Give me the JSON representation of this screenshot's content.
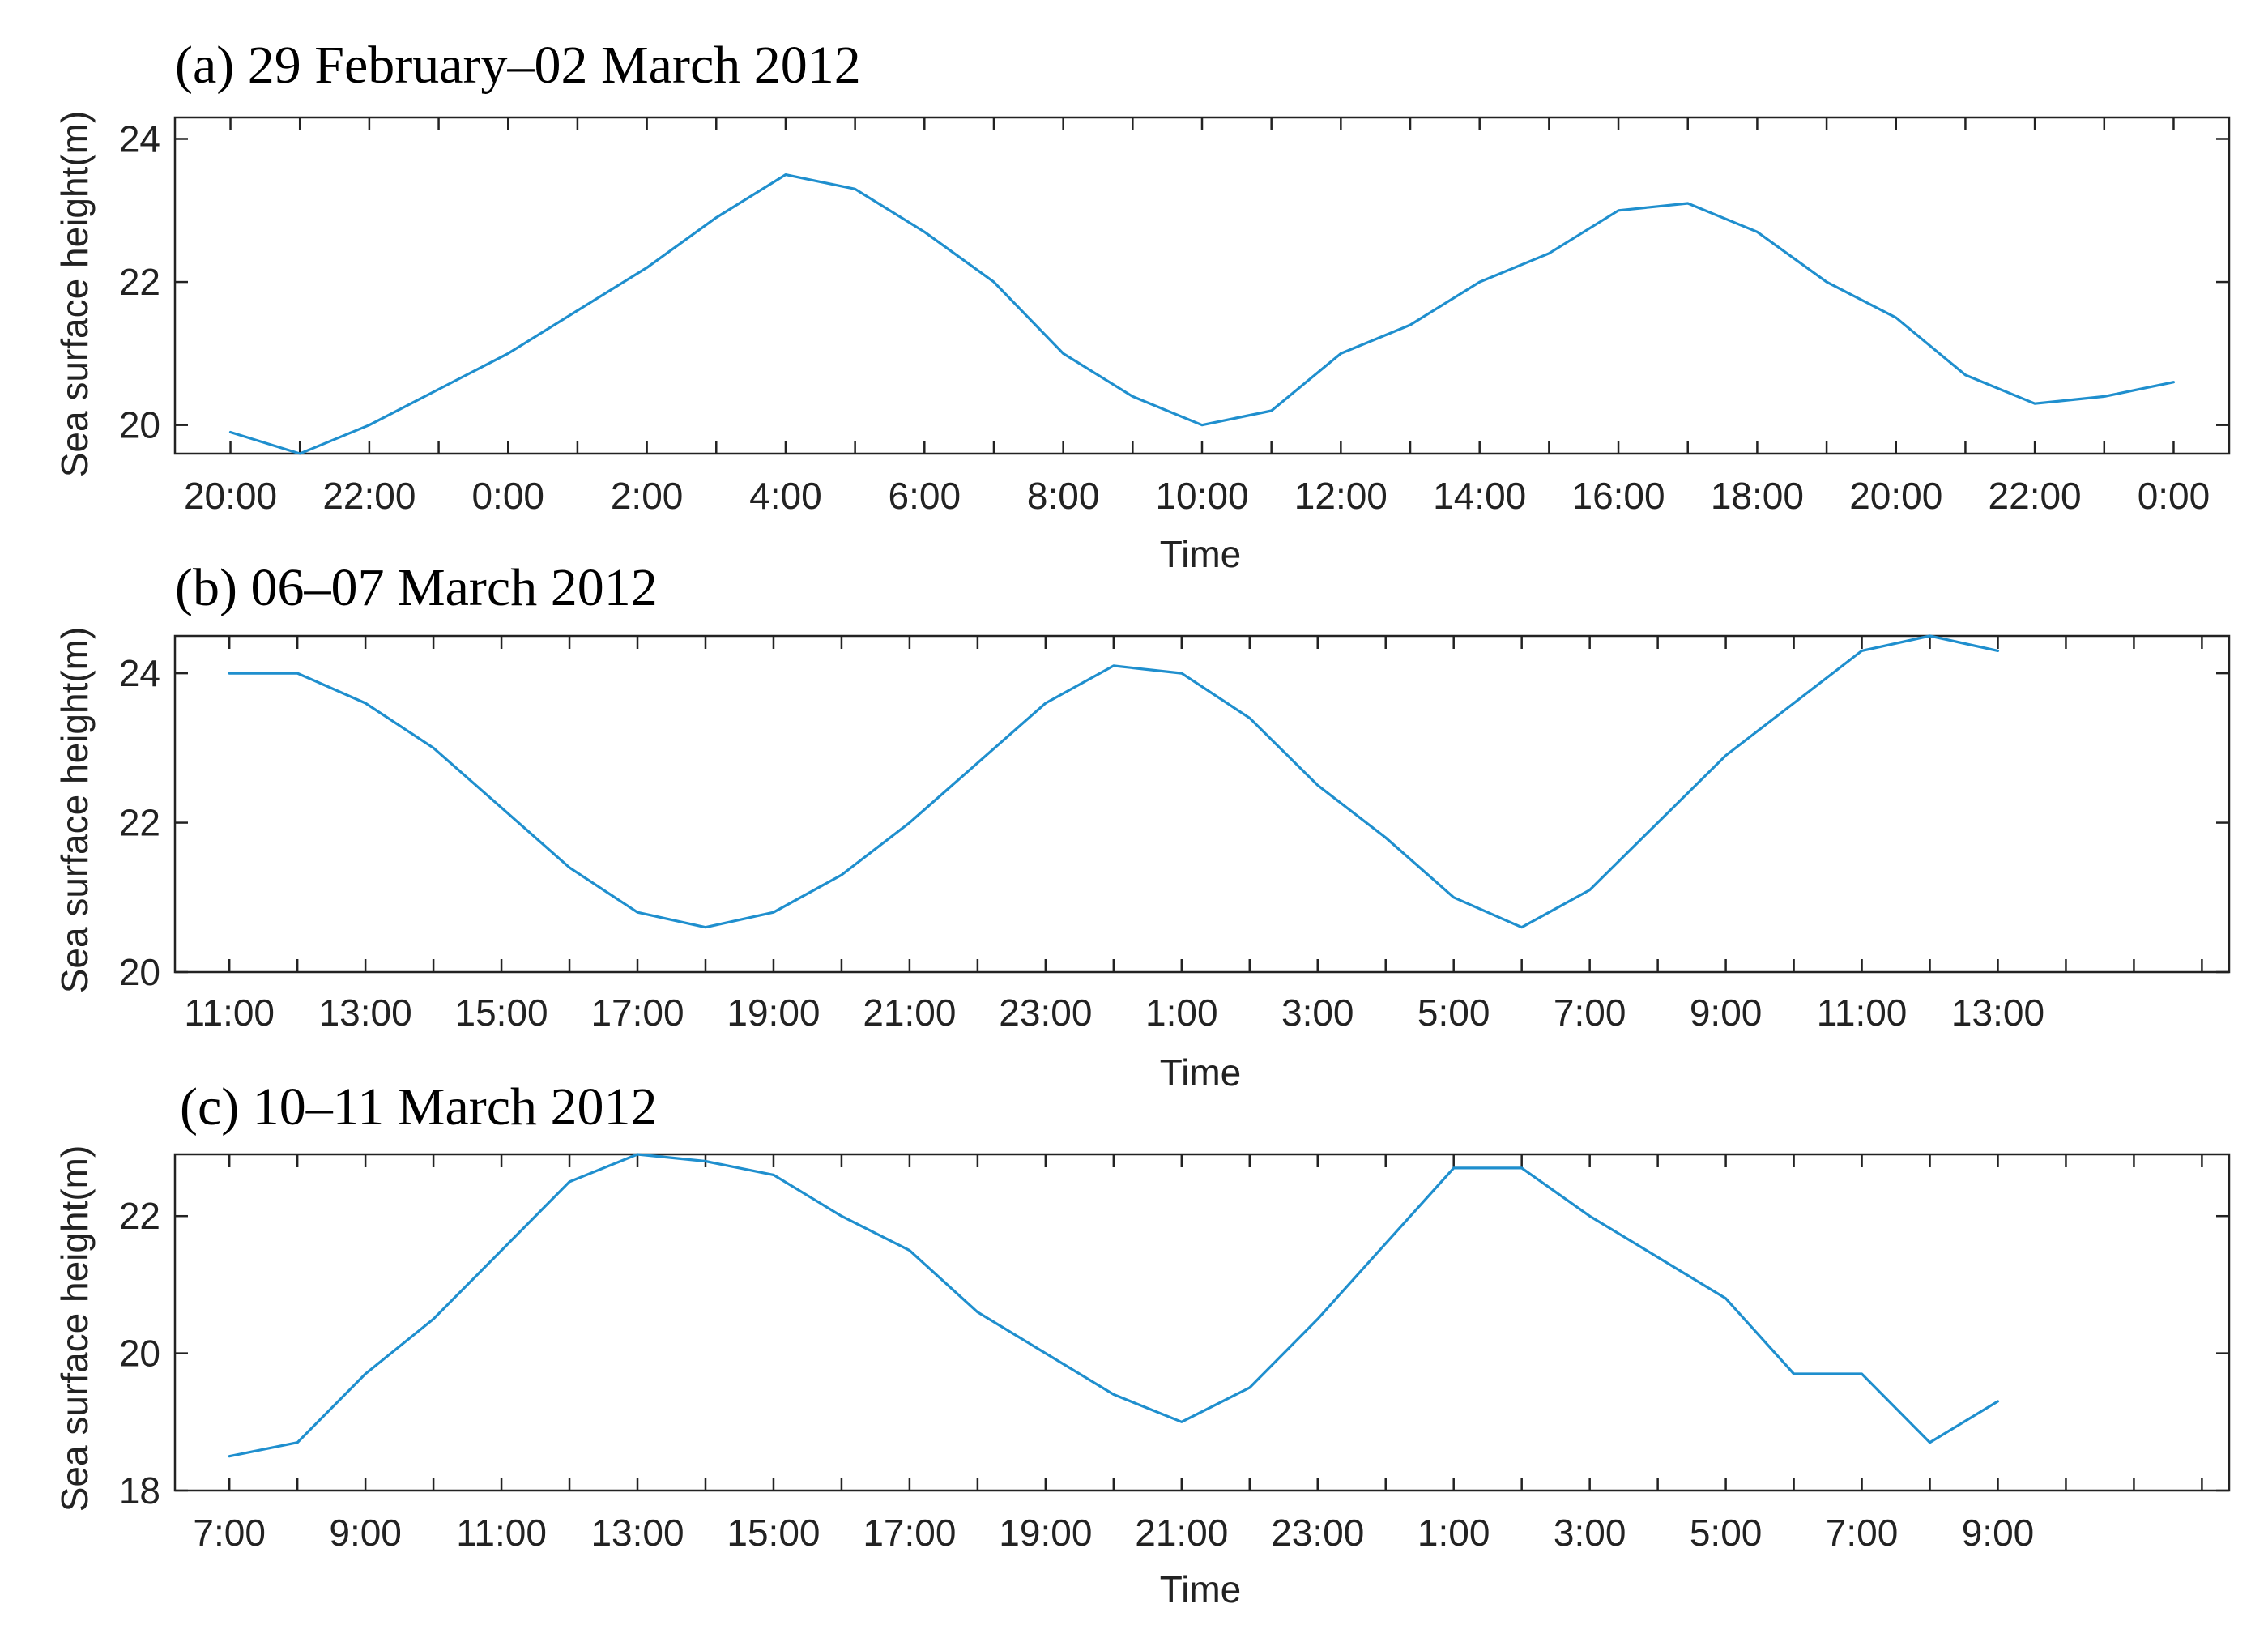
{
  "figure": {
    "line_color": "#1f8fce"
  },
  "chart_data": [
    {
      "type": "line",
      "title": "(a) 29 February–02 March 2012",
      "xlabel": "Time",
      "ylabel": "Sea surface height(m)",
      "ylim": [
        19.6,
        24.3
      ],
      "yticks": [
        20,
        22,
        24
      ],
      "xlim": [
        -0.8,
        28.8
      ],
      "tick_labels": [
        "20:00",
        "22:00",
        "0:00",
        "2:00",
        "4:00",
        "6:00",
        "8:00",
        "10:00",
        "12:00",
        "14:00",
        "16:00",
        "18:00",
        "20:00",
        "22:00",
        "0:00"
      ],
      "grid": false,
      "series": [
        {
          "x": [
            "20:00",
            "21:00",
            "22:00",
            "23:00",
            "0:00",
            "1:00",
            "2:00",
            "3:00",
            "4:00",
            "5:00",
            "6:00",
            "7:00",
            "8:00",
            "9:00",
            "10:00",
            "11:00",
            "12:00",
            "13:00",
            "14:00",
            "15:00",
            "16:00",
            "17:00",
            "18:00",
            "19:00",
            "20:00",
            "21:00",
            "22:00",
            "23:00",
            "0:00"
          ],
          "values": [
            19.9,
            19.6,
            20.0,
            20.5,
            21.0,
            21.6,
            22.2,
            22.9,
            23.5,
            23.3,
            22.7,
            22.0,
            21.0,
            20.4,
            20.0,
            20.2,
            21.0,
            21.4,
            22.0,
            22.4,
            23.0,
            23.1,
            22.7,
            22.0,
            21.5,
            20.7,
            20.3,
            20.4,
            20.6
          ]
        }
      ]
    },
    {
      "type": "line",
      "title": "(b) 06–07 March 2012",
      "xlabel": "Time",
      "ylabel": "Sea surface height(m)",
      "ylim": [
        20,
        24.5
      ],
      "yticks": [
        20,
        22,
        24
      ],
      "xlim": [
        -0.8,
        29.4
      ],
      "tick_labels": [
        "11:00",
        "13:00",
        "15:00",
        "17:00",
        "19:00",
        "21:00",
        "23:00",
        "1:00",
        "3:00",
        "5:00",
        "7:00",
        "9:00",
        "11:00",
        "13:00"
      ],
      "grid": false,
      "series": [
        {
          "x": [
            "11:00",
            "12:00",
            "13:00",
            "14:00",
            "15:00",
            "16:00",
            "17:00",
            "18:00",
            "19:00",
            "20:00",
            "21:00",
            "22:00",
            "23:00",
            "0:00",
            "1:00",
            "2:00",
            "3:00",
            "4:00",
            "5:00",
            "6:00",
            "7:00",
            "8:00",
            "9:00",
            "10:00",
            "11:00",
            "12:00",
            "13:00"
          ],
          "values": [
            24.0,
            24.0,
            23.6,
            23.0,
            22.2,
            21.4,
            20.8,
            20.6,
            20.8,
            21.3,
            22.0,
            22.8,
            23.6,
            24.1,
            24.0,
            23.4,
            22.5,
            21.8,
            21.0,
            20.6,
            21.1,
            22.0,
            22.9,
            23.6,
            24.3,
            24.5,
            24.3
          ]
        }
      ]
    },
    {
      "type": "line",
      "title": "(c) 10–11 March 2012",
      "xlabel": "Time",
      "ylabel": "Sea surface height(m)",
      "ylim": [
        18,
        22.9
      ],
      "yticks": [
        18,
        20,
        22
      ],
      "xlim": [
        -0.8,
        29.4
      ],
      "tick_labels": [
        "7:00",
        "9:00",
        "11:00",
        "13:00",
        "15:00",
        "17:00",
        "19:00",
        "21:00",
        "23:00",
        "1:00",
        "3:00",
        "5:00",
        "7:00",
        "9:00"
      ],
      "grid": false,
      "series": [
        {
          "x": [
            "7:00",
            "8:00",
            "9:00",
            "10:00",
            "11:00",
            "12:00",
            "13:00",
            "14:00",
            "15:00",
            "16:00",
            "17:00",
            "18:00",
            "19:00",
            "20:00",
            "21:00",
            "22:00",
            "23:00",
            "0:00",
            "1:00",
            "2:00",
            "3:00",
            "4:00",
            "5:00",
            "6:00",
            "7:00",
            "8:00",
            "9:00"
          ],
          "values": [
            18.5,
            18.7,
            19.7,
            20.5,
            21.5,
            22.5,
            22.9,
            22.8,
            22.6,
            22.0,
            21.5,
            20.6,
            20.0,
            19.4,
            19.0,
            19.5,
            20.5,
            21.6,
            22.7,
            22.7,
            22.0,
            21.4,
            20.8,
            19.7,
            19.7,
            18.7,
            19.3
          ]
        }
      ]
    }
  ]
}
